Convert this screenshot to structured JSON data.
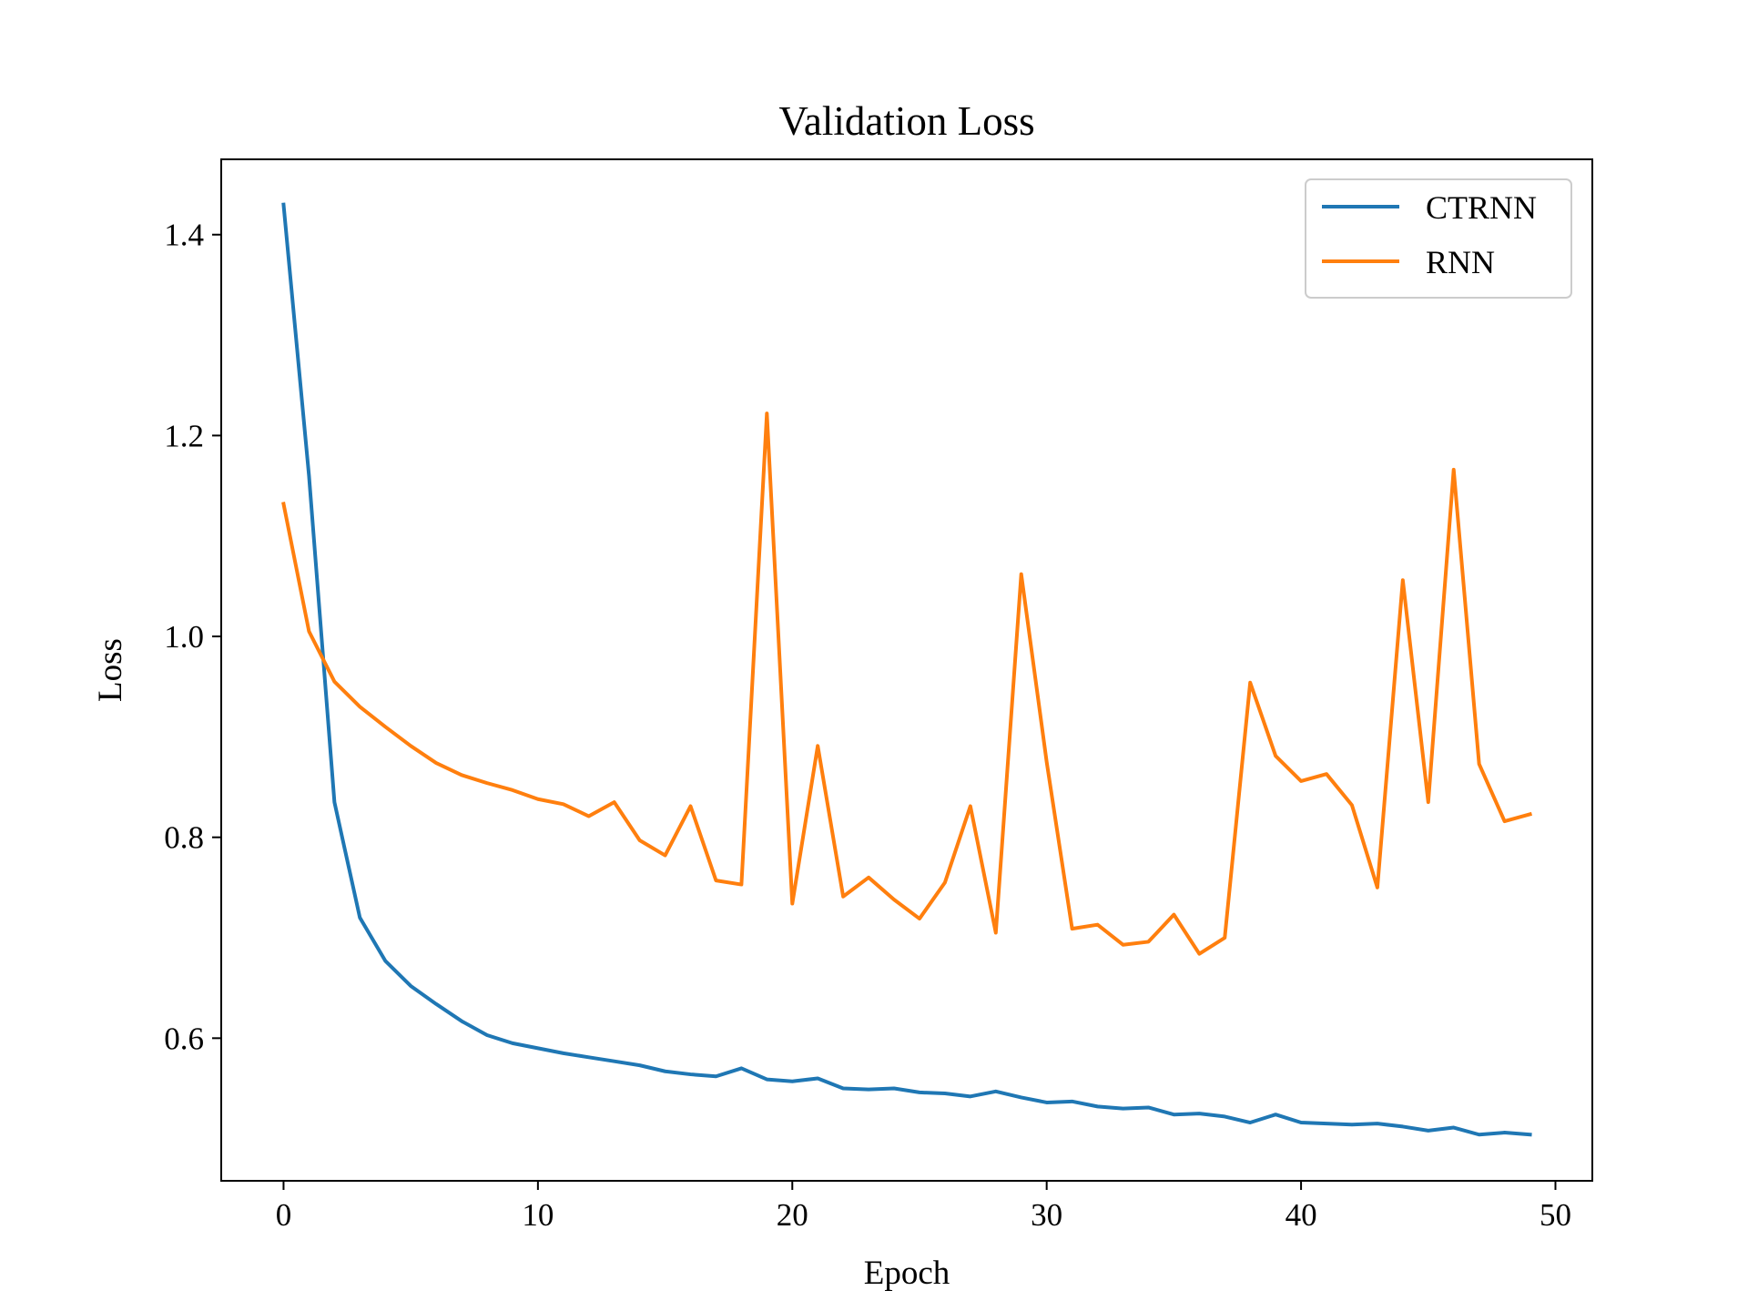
{
  "chart_data": {
    "type": "line",
    "title": "Validation Loss",
    "xlabel": "Epoch",
    "ylabel": "Loss",
    "xlim": [
      -2.45,
      51.45
    ],
    "ylim": [
      0.458,
      1.475
    ],
    "xticks": [
      0,
      10,
      20,
      30,
      40,
      50
    ],
    "yticks": [
      0.6,
      0.8,
      1.0,
      1.2,
      1.4
    ],
    "xtick_labels": [
      "0",
      "10",
      "20",
      "30",
      "40",
      "50"
    ],
    "ytick_labels": [
      "0.6",
      "0.8",
      "1.0",
      "1.2",
      "1.4"
    ],
    "grid": false,
    "legend_position": "top-right",
    "x": [
      0,
      1,
      2,
      3,
      4,
      5,
      6,
      7,
      8,
      9,
      10,
      11,
      12,
      13,
      14,
      15,
      16,
      17,
      18,
      19,
      20,
      21,
      22,
      23,
      24,
      25,
      26,
      27,
      28,
      29,
      30,
      31,
      32,
      33,
      34,
      35,
      36,
      37,
      38,
      39,
      40,
      41,
      42,
      43,
      44,
      45,
      46,
      47,
      48,
      49
    ],
    "series": [
      {
        "name": "CTRNN",
        "color": "#1f77b4",
        "values": [
          1.43,
          1.16,
          0.835,
          0.72,
          0.677,
          0.652,
          0.634,
          0.617,
          0.603,
          0.595,
          0.59,
          0.585,
          0.581,
          0.577,
          0.573,
          0.567,
          0.564,
          0.562,
          0.57,
          0.559,
          0.557,
          0.56,
          0.55,
          0.549,
          0.55,
          0.546,
          0.545,
          0.542,
          0.547,
          0.541,
          0.536,
          0.537,
          0.532,
          0.53,
          0.531,
          0.524,
          0.525,
          0.522,
          0.516,
          0.524,
          0.516,
          0.515,
          0.514,
          0.515,
          0.512,
          0.508,
          0.511,
          0.504,
          0.506,
          0.504
        ]
      },
      {
        "name": "RNN",
        "color": "#ff7f0e",
        "values": [
          1.132,
          1.005,
          0.955,
          0.93,
          0.91,
          0.891,
          0.874,
          0.862,
          0.854,
          0.847,
          0.838,
          0.833,
          0.821,
          0.835,
          0.797,
          0.782,
          0.831,
          0.757,
          0.753,
          1.222,
          0.734,
          0.891,
          0.741,
          0.76,
          0.738,
          0.719,
          0.755,
          0.831,
          0.705,
          1.062,
          0.875,
          0.709,
          0.713,
          0.693,
          0.696,
          0.723,
          0.684,
          0.7,
          0.954,
          0.881,
          0.856,
          0.863,
          0.832,
          0.75,
          1.056,
          0.835,
          1.166,
          0.873,
          0.816,
          0.823
        ]
      }
    ]
  }
}
